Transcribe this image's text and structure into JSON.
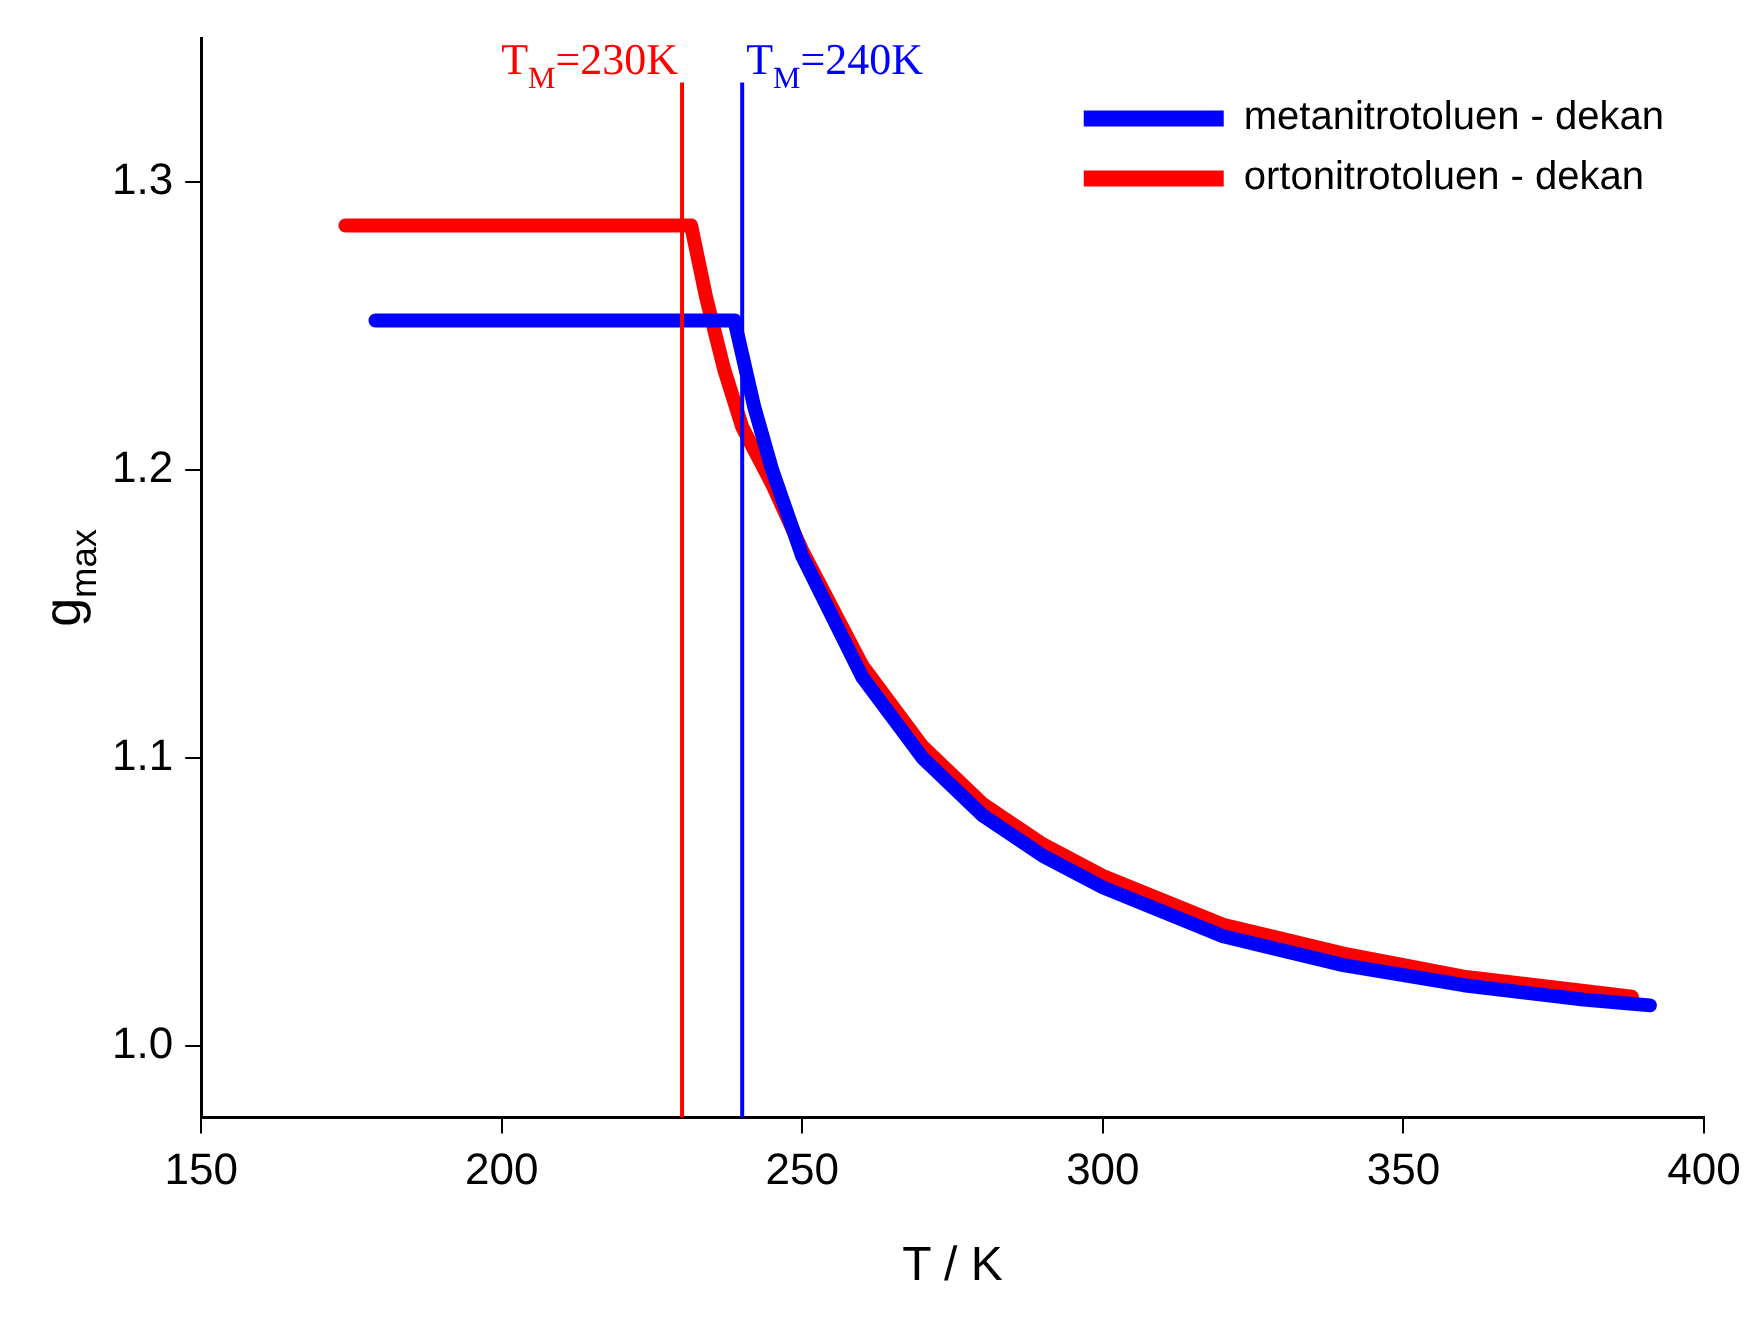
{
  "chart_data": {
    "type": "line",
    "xlabel": "T / K",
    "ylabel": "g$_{max}$",
    "xlim": [
      150,
      400
    ],
    "xticks": [
      150,
      200,
      250,
      300,
      350,
      400
    ],
    "ylim": [
      0.975,
      1.35
    ],
    "yticks": [
      {
        "value": 1.0,
        "label": "1.0"
      },
      1.1,
      1.2,
      1.3
    ],
    "grid": false,
    "legend": "top right",
    "marker": "none",
    "line_style": "solid",
    "series": [
      {
        "name": "metanitrotoluen - dekan",
        "color": "#0000ff",
        "x": [
          179,
          238.7,
          242,
          245,
          250,
          260,
          270,
          280,
          290,
          300,
          320,
          340,
          360,
          380,
          391
        ],
        "values": [
          1.252,
          1.252,
          1.222,
          1.2,
          1.17,
          1.128,
          1.1,
          1.08,
          1.066,
          1.055,
          1.038,
          1.028,
          1.021,
          1.016,
          1.014
        ]
      },
      {
        "name": "ortonitrotoluen - dekan",
        "color": "#ff0000",
        "x": [
          174,
          231.5,
          234,
          237,
          240,
          245,
          250,
          260,
          270,
          280,
          290,
          300,
          320,
          340,
          360,
          380,
          388
        ],
        "values": [
          1.285,
          1.285,
          1.26,
          1.235,
          1.215,
          1.195,
          1.172,
          1.132,
          1.104,
          1.084,
          1.07,
          1.059,
          1.042,
          1.032,
          1.024,
          1.019,
          1.017
        ]
      }
    ],
    "ref_lines": [
      {
        "axis": "x",
        "value": 230,
        "label": "T$_{M}$=230K",
        "color": "#ff0000"
      },
      {
        "axis": "x",
        "value": 240,
        "label": "T$_{M}$=240K",
        "color": "#0000ff"
      }
    ]
  }
}
